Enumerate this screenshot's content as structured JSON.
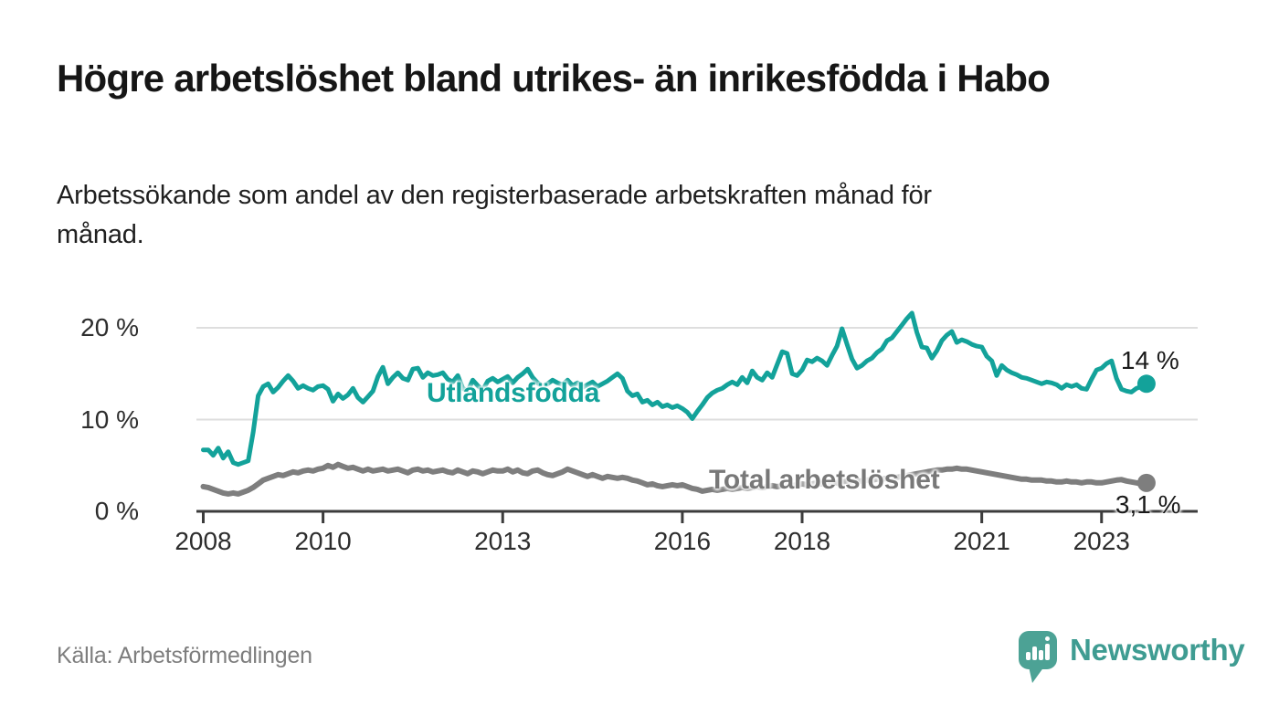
{
  "header": {
    "title": "Högre arbetslöshet bland utrikes- än inrikesfödda i Habo",
    "subtitle": "Arbetssökande som andel av den registerbaserade arbetskraften månad för månad."
  },
  "source": {
    "label": "Källa: Arbetsförmedlingen"
  },
  "branding": {
    "name": "Newsworthy",
    "logo_icon": "bar-chart-speech-bubble-icon"
  },
  "colors": {
    "foreign_born_line": "#13a29a",
    "total_line": "#7e7e7e",
    "total_label": "#787878",
    "grid": "#dedede",
    "axis": "#3c3c3c",
    "axis_text": "#2d2d2d",
    "annotation_text": "#1a1a1a",
    "title_text": "#161616",
    "source_text": "#7e7e7e",
    "logo_teal": "#4ca295",
    "logo_text_teal": "#3f9c92"
  },
  "chart_data": {
    "type": "line",
    "unit": "%",
    "grid": "horizontal",
    "legend_position": "inline-labels",
    "x_start_year": 2008,
    "points_per_year": 12,
    "xlim": [
      2007.89,
      2024.6
    ],
    "ylim": [
      0,
      22.9
    ],
    "x_ticks": [
      2008,
      2010,
      2013,
      2016,
      2018,
      2021,
      2023
    ],
    "x_tick_labels": [
      "2008",
      "2010",
      "2013",
      "2016",
      "2018",
      "2021",
      "2023"
    ],
    "y_ticks": [
      0,
      10,
      20
    ],
    "y_tick_labels": [
      "0 %",
      "10 %",
      "20 %"
    ],
    "series": [
      {
        "name": "Utlandsfödda",
        "color": "#13a29a",
        "end_label": "14 %",
        "last_value": 13.9,
        "values": [
          6.7,
          6.7,
          6.1,
          6.9,
          5.8,
          6.5,
          5.3,
          5.1,
          5.3,
          5.5,
          8.6,
          12.6,
          13.6,
          13.9,
          13.0,
          13.5,
          14.2,
          14.8,
          14.2,
          13.4,
          13.7,
          13.4,
          13.2,
          13.6,
          13.7,
          13.3,
          12.0,
          12.8,
          12.3,
          12.7,
          13.4,
          12.4,
          11.9,
          12.5,
          13.1,
          14.7,
          15.7,
          13.9,
          14.6,
          15.1,
          14.5,
          14.3,
          15.5,
          15.6,
          14.6,
          15.1,
          14.8,
          14.9,
          15.1,
          14.4,
          14.1,
          14.8,
          13.4,
          13.1,
          14.3,
          13.7,
          13.2,
          14.2,
          14.5,
          14.1,
          14.4,
          14.7,
          14.0,
          14.6,
          15.0,
          15.5,
          14.6,
          14.0,
          13.6,
          13.9,
          14.3,
          14.0,
          13.8,
          14.3,
          13.7,
          14.0,
          13.5,
          13.8,
          14.1,
          13.6,
          13.9,
          14.2,
          14.6,
          15.0,
          14.5,
          13.1,
          12.6,
          12.8,
          11.9,
          12.1,
          11.6,
          11.9,
          11.4,
          11.6,
          11.3,
          11.5,
          11.2,
          10.8,
          10.1,
          10.9,
          11.6,
          12.4,
          12.9,
          13.2,
          13.4,
          13.8,
          14.1,
          13.8,
          14.6,
          14.0,
          15.3,
          14.6,
          14.3,
          15.1,
          14.6,
          16.0,
          17.4,
          17.2,
          15.0,
          14.8,
          15.4,
          16.5,
          16.3,
          16.7,
          16.4,
          15.9,
          17.0,
          18.0,
          19.9,
          18.2,
          16.6,
          15.6,
          15.9,
          16.4,
          16.7,
          17.3,
          17.7,
          18.6,
          18.9,
          19.6,
          20.3,
          21.0,
          21.6,
          19.5,
          17.9,
          17.8,
          16.7,
          17.5,
          18.6,
          19.2,
          19.6,
          18.4,
          18.7,
          18.5,
          18.2,
          18.0,
          17.9,
          16.9,
          16.4,
          14.8,
          15.9,
          15.4,
          15.1,
          14.9,
          14.6,
          14.5,
          14.3,
          14.1,
          13.9,
          14.1,
          14.0,
          13.8,
          13.4,
          13.8,
          13.6,
          13.8,
          13.4,
          13.3,
          14.4,
          15.4,
          15.6,
          16.1,
          16.4,
          14.5,
          13.3,
          13.1,
          13.0,
          13.4,
          13.6,
          13.9
        ]
      },
      {
        "name": "Total arbetslöshet",
        "color": "#7e7e7e",
        "end_label": "3,1 %",
        "last_value": 3.1,
        "values": [
          2.7,
          2.6,
          2.4,
          2.2,
          2.0,
          1.9,
          2.0,
          1.9,
          2.1,
          2.3,
          2.6,
          3.0,
          3.4,
          3.6,
          3.8,
          4.0,
          3.9,
          4.1,
          4.3,
          4.2,
          4.4,
          4.5,
          4.4,
          4.6,
          4.7,
          5.0,
          4.8,
          5.1,
          4.9,
          4.7,
          4.8,
          4.6,
          4.4,
          4.6,
          4.4,
          4.5,
          4.6,
          4.4,
          4.5,
          4.6,
          4.4,
          4.2,
          4.5,
          4.6,
          4.4,
          4.5,
          4.3,
          4.4,
          4.5,
          4.3,
          4.2,
          4.5,
          4.3,
          4.1,
          4.4,
          4.3,
          4.1,
          4.3,
          4.5,
          4.4,
          4.4,
          4.6,
          4.3,
          4.5,
          4.2,
          4.1,
          4.4,
          4.5,
          4.2,
          4.0,
          3.9,
          4.1,
          4.3,
          4.6,
          4.4,
          4.2,
          4.0,
          3.8,
          4.0,
          3.8,
          3.6,
          3.8,
          3.7,
          3.6,
          3.7,
          3.6,
          3.4,
          3.3,
          3.1,
          2.9,
          3.0,
          2.8,
          2.7,
          2.8,
          2.9,
          2.8,
          2.9,
          2.7,
          2.5,
          2.4,
          2.2,
          2.3,
          2.4,
          2.3,
          2.4,
          2.5,
          2.4,
          2.5,
          2.6,
          2.5,
          2.6,
          2.7,
          2.6,
          2.7,
          2.8,
          2.7,
          2.8,
          2.9,
          2.8,
          2.9,
          3.0,
          2.9,
          3.0,
          3.1,
          3.0,
          3.1,
          3.2,
          3.1,
          3.2,
          3.3,
          3.2,
          3.3,
          3.3,
          3.4,
          3.4,
          3.5,
          3.5,
          3.6,
          3.7,
          3.7,
          3.8,
          3.9,
          4.0,
          4.1,
          4.2,
          4.3,
          4.4,
          4.5,
          4.5,
          4.6,
          4.6,
          4.7,
          4.6,
          4.6,
          4.5,
          4.4,
          4.3,
          4.2,
          4.1,
          4.0,
          3.9,
          3.8,
          3.7,
          3.6,
          3.5,
          3.5,
          3.4,
          3.4,
          3.4,
          3.3,
          3.3,
          3.2,
          3.2,
          3.3,
          3.2,
          3.2,
          3.1,
          3.2,
          3.2,
          3.1,
          3.1,
          3.2,
          3.3,
          3.4,
          3.45,
          3.3,
          3.2,
          3.1,
          3.0,
          3.1
        ]
      }
    ]
  }
}
